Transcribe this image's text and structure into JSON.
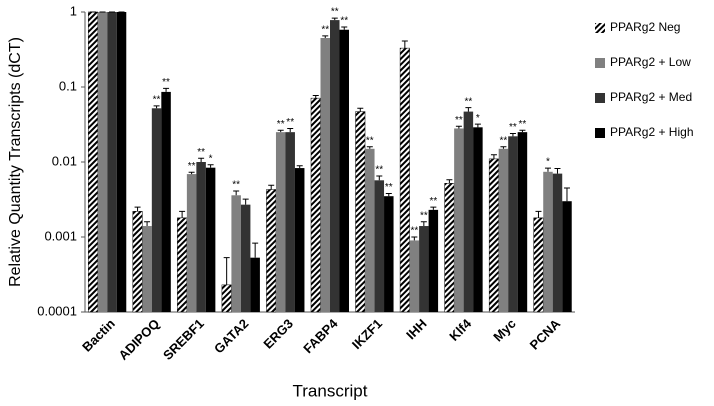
{
  "chart_data": {
    "type": "bar",
    "y_label": "Relative Quantity Transcripts (dCT)",
    "x_label": "Transcript",
    "log_scale": true,
    "ylim": [
      0.0001,
      1
    ],
    "yticks": [
      0.0001,
      0.001,
      0.01,
      0.1,
      1
    ],
    "legend": "right",
    "categories": [
      "Bactin",
      "ADIPOQ",
      "SREBF1",
      "GATA2",
      "ERG3",
      "FABP4",
      "IKZF1",
      "IHH",
      "Klf4",
      "Myc",
      "PCNA"
    ],
    "series": [
      {
        "name": "PPARg2 Neg",
        "color": "#000000",
        "hatch": true,
        "values": [
          1,
          0.0022,
          0.0018,
          0.00023,
          0.0043,
          0.071,
          0.047,
          0.33,
          0.0052,
          0.011,
          0.0018
        ],
        "errors": [
          0,
          0.0003,
          0.0004,
          0.0003,
          0.0006,
          0.006,
          0.005,
          0.08,
          0.0006,
          0.0015,
          0.0004
        ],
        "labels": [
          null,
          null,
          null,
          null,
          null,
          null,
          null,
          null,
          null,
          null,
          null
        ]
      },
      {
        "name": "PPARg2 + Low",
        "color": "#808080",
        "hatch": false,
        "values": [
          1,
          0.0014,
          0.0069,
          0.0036,
          0.025,
          0.45,
          0.015,
          0.0009,
          0.028,
          0.015,
          0.0074
        ],
        "errors": [
          0,
          0.0002,
          0.0004,
          0.0005,
          0.0015,
          0.03,
          0.001,
          0.0001,
          0.002,
          0.001,
          0.0009
        ],
        "labels": [
          null,
          null,
          "**",
          "**",
          "**",
          "**",
          "**",
          "**",
          "**",
          "**",
          "*"
        ]
      },
      {
        "name": "PPARg2 + Med",
        "color": "#333333",
        "hatch": false,
        "values": [
          1,
          0.052,
          0.01,
          0.0027,
          0.025,
          0.78,
          0.0057,
          0.0014,
          0.047,
          0.022,
          0.007
        ],
        "errors": [
          0,
          0.004,
          0.0012,
          0.0005,
          0.003,
          0.05,
          0.0008,
          0.0002,
          0.006,
          0.002,
          0.0012
        ],
        "labels": [
          null,
          "**",
          "**",
          null,
          "**",
          "**",
          "**",
          "**",
          "**",
          "**",
          null
        ]
      },
      {
        "name": "PPARg2 + High",
        "color": "#000000",
        "hatch": false,
        "values": [
          1,
          0.086,
          0.0084,
          0.00053,
          0.0083,
          0.58,
          0.0035,
          0.0023,
          0.029,
          0.025,
          0.003
        ],
        "errors": [
          0,
          0.01,
          0.0008,
          0.0003,
          0.0006,
          0.05,
          0.0003,
          0.0002,
          0.003,
          0.0015,
          0.0015
        ],
        "labels": [
          null,
          "**",
          "*",
          null,
          null,
          "**",
          "**",
          "**",
          "*",
          "**",
          null
        ]
      }
    ]
  }
}
